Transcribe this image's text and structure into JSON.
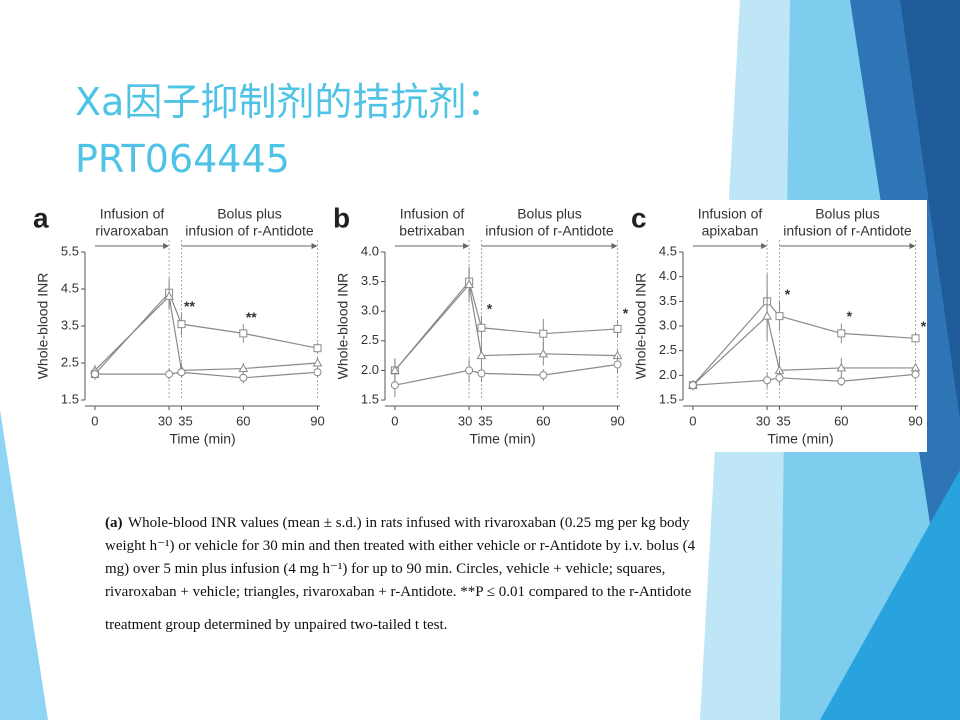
{
  "slide": {
    "title": [
      "Xa因子抑制剂的拮抗剂：",
      "PRT064445"
    ]
  },
  "caption": {
    "label": "(a)",
    "lines": [
      " Whole-blood INR values (mean ± s.d.) in rats infused with rivaroxaban (0.25 mg per kg body",
      "weight h⁻¹) or vehicle for 30 min and then treated with either vehicle or r-Antidote by i.v. bolus (4",
      "mg) over 5 min plus infusion (4 mg h⁻¹) for up to 90 min. Circles, vehicle + vehicle; squares,",
      "rivaroxaban + vehicle; triangles, rivaroxaban + r-Antidote. **P ≤ 0.01 compared to the r-Antidote",
      "treatment group determined by unpaired two-tailed t test."
    ]
  },
  "chart_data": [
    {
      "type": "line",
      "panel": "a",
      "header_left": [
        "Infusion of",
        "rivaroxaban"
      ],
      "header_right": [
        "Bolus plus",
        "infusion of r-Antidote"
      ],
      "ylabel": "Whole-blood INR",
      "xlabel": "Time (min)",
      "x": [
        0,
        30,
        35,
        60,
        90
      ],
      "xlim": [
        -4,
        91
      ],
      "xticks": [
        0,
        30,
        35,
        60,
        90
      ],
      "ylim": [
        1.5,
        5.5
      ],
      "yticks": [
        1.5,
        2.5,
        3.5,
        4.5,
        5.5
      ],
      "series": [
        {
          "marker": "square",
          "color": "#8a8a8a",
          "values": [
            2.2,
            4.4,
            3.55,
            3.3,
            2.9
          ],
          "errors": [
            0.15,
            0.4,
            0.3,
            0.25,
            0.15
          ]
        },
        {
          "marker": "triangle",
          "color": "#8a8a8a",
          "values": [
            2.3,
            4.3,
            2.3,
            2.35,
            2.5
          ],
          "errors": [
            0.15,
            0.35,
            0.2,
            0.15,
            0.15
          ]
        },
        {
          "marker": "circle",
          "color": "#8a8a8a",
          "values": [
            2.2,
            2.2,
            2.25,
            2.1,
            2.25
          ],
          "errors": [
            0.15,
            0.15,
            0.15,
            0.15,
            0.15
          ]
        }
      ],
      "annotations": [
        {
          "text": "**",
          "x": 35
        },
        {
          "text": "**",
          "x": 60
        }
      ]
    },
    {
      "type": "line",
      "panel": "b",
      "header_left": [
        "Infusion of",
        "betrixaban"
      ],
      "header_right": [
        "Bolus plus",
        "infusion of r-Antidote"
      ],
      "ylabel": "Whole-blood INR",
      "xlabel": "Time (min)",
      "x": [
        0,
        30,
        35,
        60,
        90
      ],
      "xlim": [
        -4,
        91
      ],
      "xticks": [
        0,
        30,
        35,
        60,
        90
      ],
      "ylim": [
        1.5,
        4.0
      ],
      "yticks": [
        1.5,
        {
          "value": 2,
          "label": "2.0"
        },
        2.5,
        {
          "value": 3,
          "label": "3.0"
        },
        3.5,
        {
          "value": 4,
          "label": "4.0"
        }
      ],
      "series": [
        {
          "marker": "square",
          "color": "#8a8a8a",
          "values": [
            2.0,
            3.5,
            2.72,
            2.62,
            2.7
          ],
          "errors": [
            0.2,
            0.25,
            0.2,
            0.25,
            0.15
          ]
        },
        {
          "marker": "triangle",
          "color": "#8a8a8a",
          "values": [
            2.0,
            3.45,
            2.25,
            2.28,
            2.25
          ],
          "errors": [
            0.2,
            0.3,
            0.25,
            0.2,
            0.1
          ]
        },
        {
          "marker": "circle",
          "color": "#8a8a8a",
          "values": [
            1.75,
            2.0,
            1.95,
            1.92,
            2.1
          ],
          "errors": [
            0.2,
            0.2,
            0.15,
            0.1,
            0.15
          ]
        }
      ],
      "annotations": [
        {
          "text": "*",
          "x": 35
        },
        {
          "text": "*",
          "x": 90
        }
      ]
    },
    {
      "type": "line",
      "panel": "c",
      "header_left": [
        "Infusion of",
        "apixaban"
      ],
      "header_right": [
        "Bolus plus",
        "infusion of r-Antidote"
      ],
      "ylabel": "Whole-blood INR",
      "xlabel": "Time (min)",
      "x": [
        0,
        30,
        35,
        60,
        90
      ],
      "xlim": [
        -4,
        91
      ],
      "xticks": [
        0,
        30,
        35,
        60,
        90
      ],
      "ylim": [
        1.5,
        4.5
      ],
      "yticks": [
        1.5,
        {
          "value": 2,
          "label": "2.0"
        },
        2.5,
        {
          "value": 3,
          "label": "3.0"
        },
        3.5,
        {
          "value": 4,
          "label": "4.0"
        },
        4.5
      ],
      "series": [
        {
          "marker": "square",
          "color": "#8a8a8a",
          "values": [
            1.8,
            3.5,
            3.2,
            2.85,
            2.75
          ],
          "errors": [
            0.1,
            0.55,
            0.3,
            0.2,
            0.1
          ]
        },
        {
          "marker": "triangle",
          "color": "#8a8a8a",
          "values": [
            1.8,
            3.2,
            2.1,
            2.15,
            2.15
          ],
          "errors": [
            0.1,
            0.5,
            0.3,
            0.2,
            0.1
          ]
        },
        {
          "marker": "circle",
          "color": "#8a8a8a",
          "values": [
            1.8,
            1.9,
            1.95,
            1.88,
            2.02
          ],
          "errors": [
            0.1,
            0.15,
            0.15,
            0.1,
            0.1
          ]
        }
      ],
      "annotations": [
        {
          "text": "*",
          "x": 35
        },
        {
          "text": "*",
          "x": 60
        },
        {
          "text": "*",
          "x": 90
        }
      ]
    }
  ]
}
